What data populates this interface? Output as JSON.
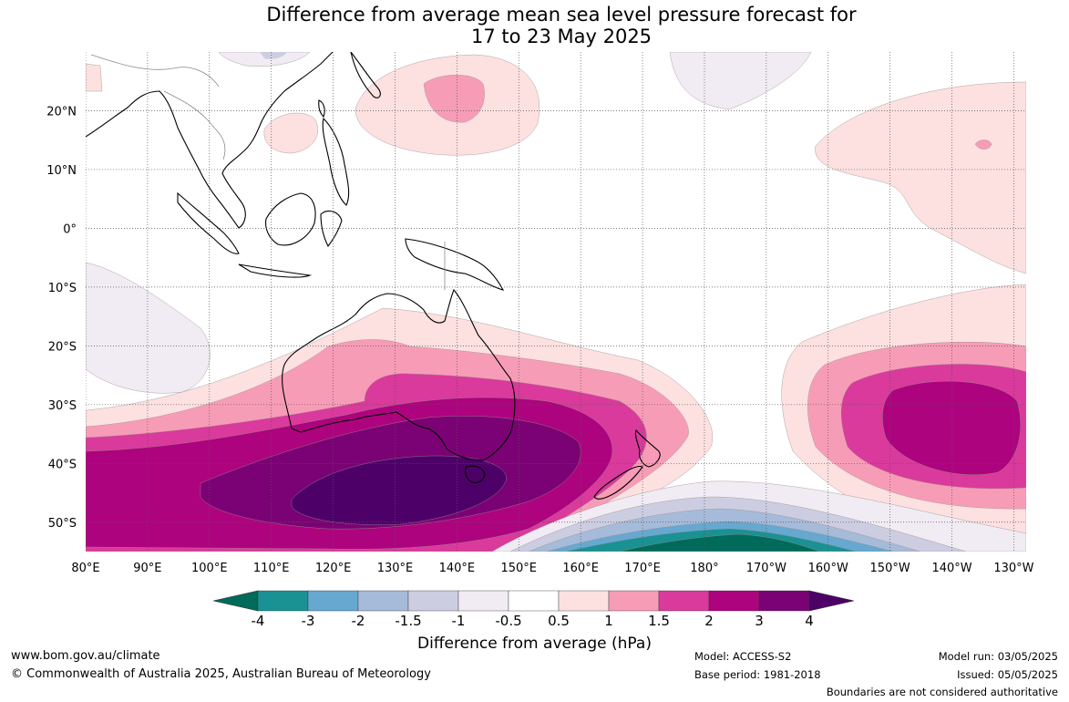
{
  "title": {
    "line1": "Difference from average mean sea level pressure forecast for",
    "line2": "17 to 23 May 2025"
  },
  "map": {
    "lon_labels": [
      "80°E",
      "90°E",
      "100°E",
      "110°E",
      "120°E",
      "130°E",
      "140°E",
      "150°E",
      "160°E",
      "170°E",
      "180°",
      "170°W",
      "160°W",
      "150°W",
      "140°W",
      "130°W"
    ],
    "lat_labels": [
      "20°N",
      "10°N",
      "0°",
      "10°S",
      "20°S",
      "30°S",
      "40°S",
      "50°S"
    ],
    "extent": {
      "lon_min": 80,
      "lon_max": 232,
      "lat_min": -55,
      "lat_max": 30
    }
  },
  "colorbar": {
    "title": "Difference from average (hPa)",
    "ticks": [
      "-4",
      "-3",
      "-2",
      "-1.5",
      "-1",
      "-0.5",
      "0.5",
      "1",
      "1.5",
      "2",
      "3",
      "4"
    ],
    "colors": [
      "#006b5a",
      "#1a9193",
      "#66a8d0",
      "#a6bbd9",
      "#cdcde2",
      "#f1ecf3",
      "#ffffff",
      "#fde0e0",
      "#f79cb7",
      "#d93a9b",
      "#ae037e",
      "#7b0274",
      "#4d0068"
    ]
  },
  "footer": {
    "website": "www.bom.gov.au/climate",
    "copyright": "© Commonwealth of Australia 2025, Australian Bureau of Meteorology",
    "model": "Model: ACCESS-S2",
    "base_period": "Base period: 1981-2018",
    "model_run": "Model run: 03/05/2025",
    "issued": "Issued: 05/05/2025",
    "disclaimer": "Boundaries are not considered authoritative"
  }
}
